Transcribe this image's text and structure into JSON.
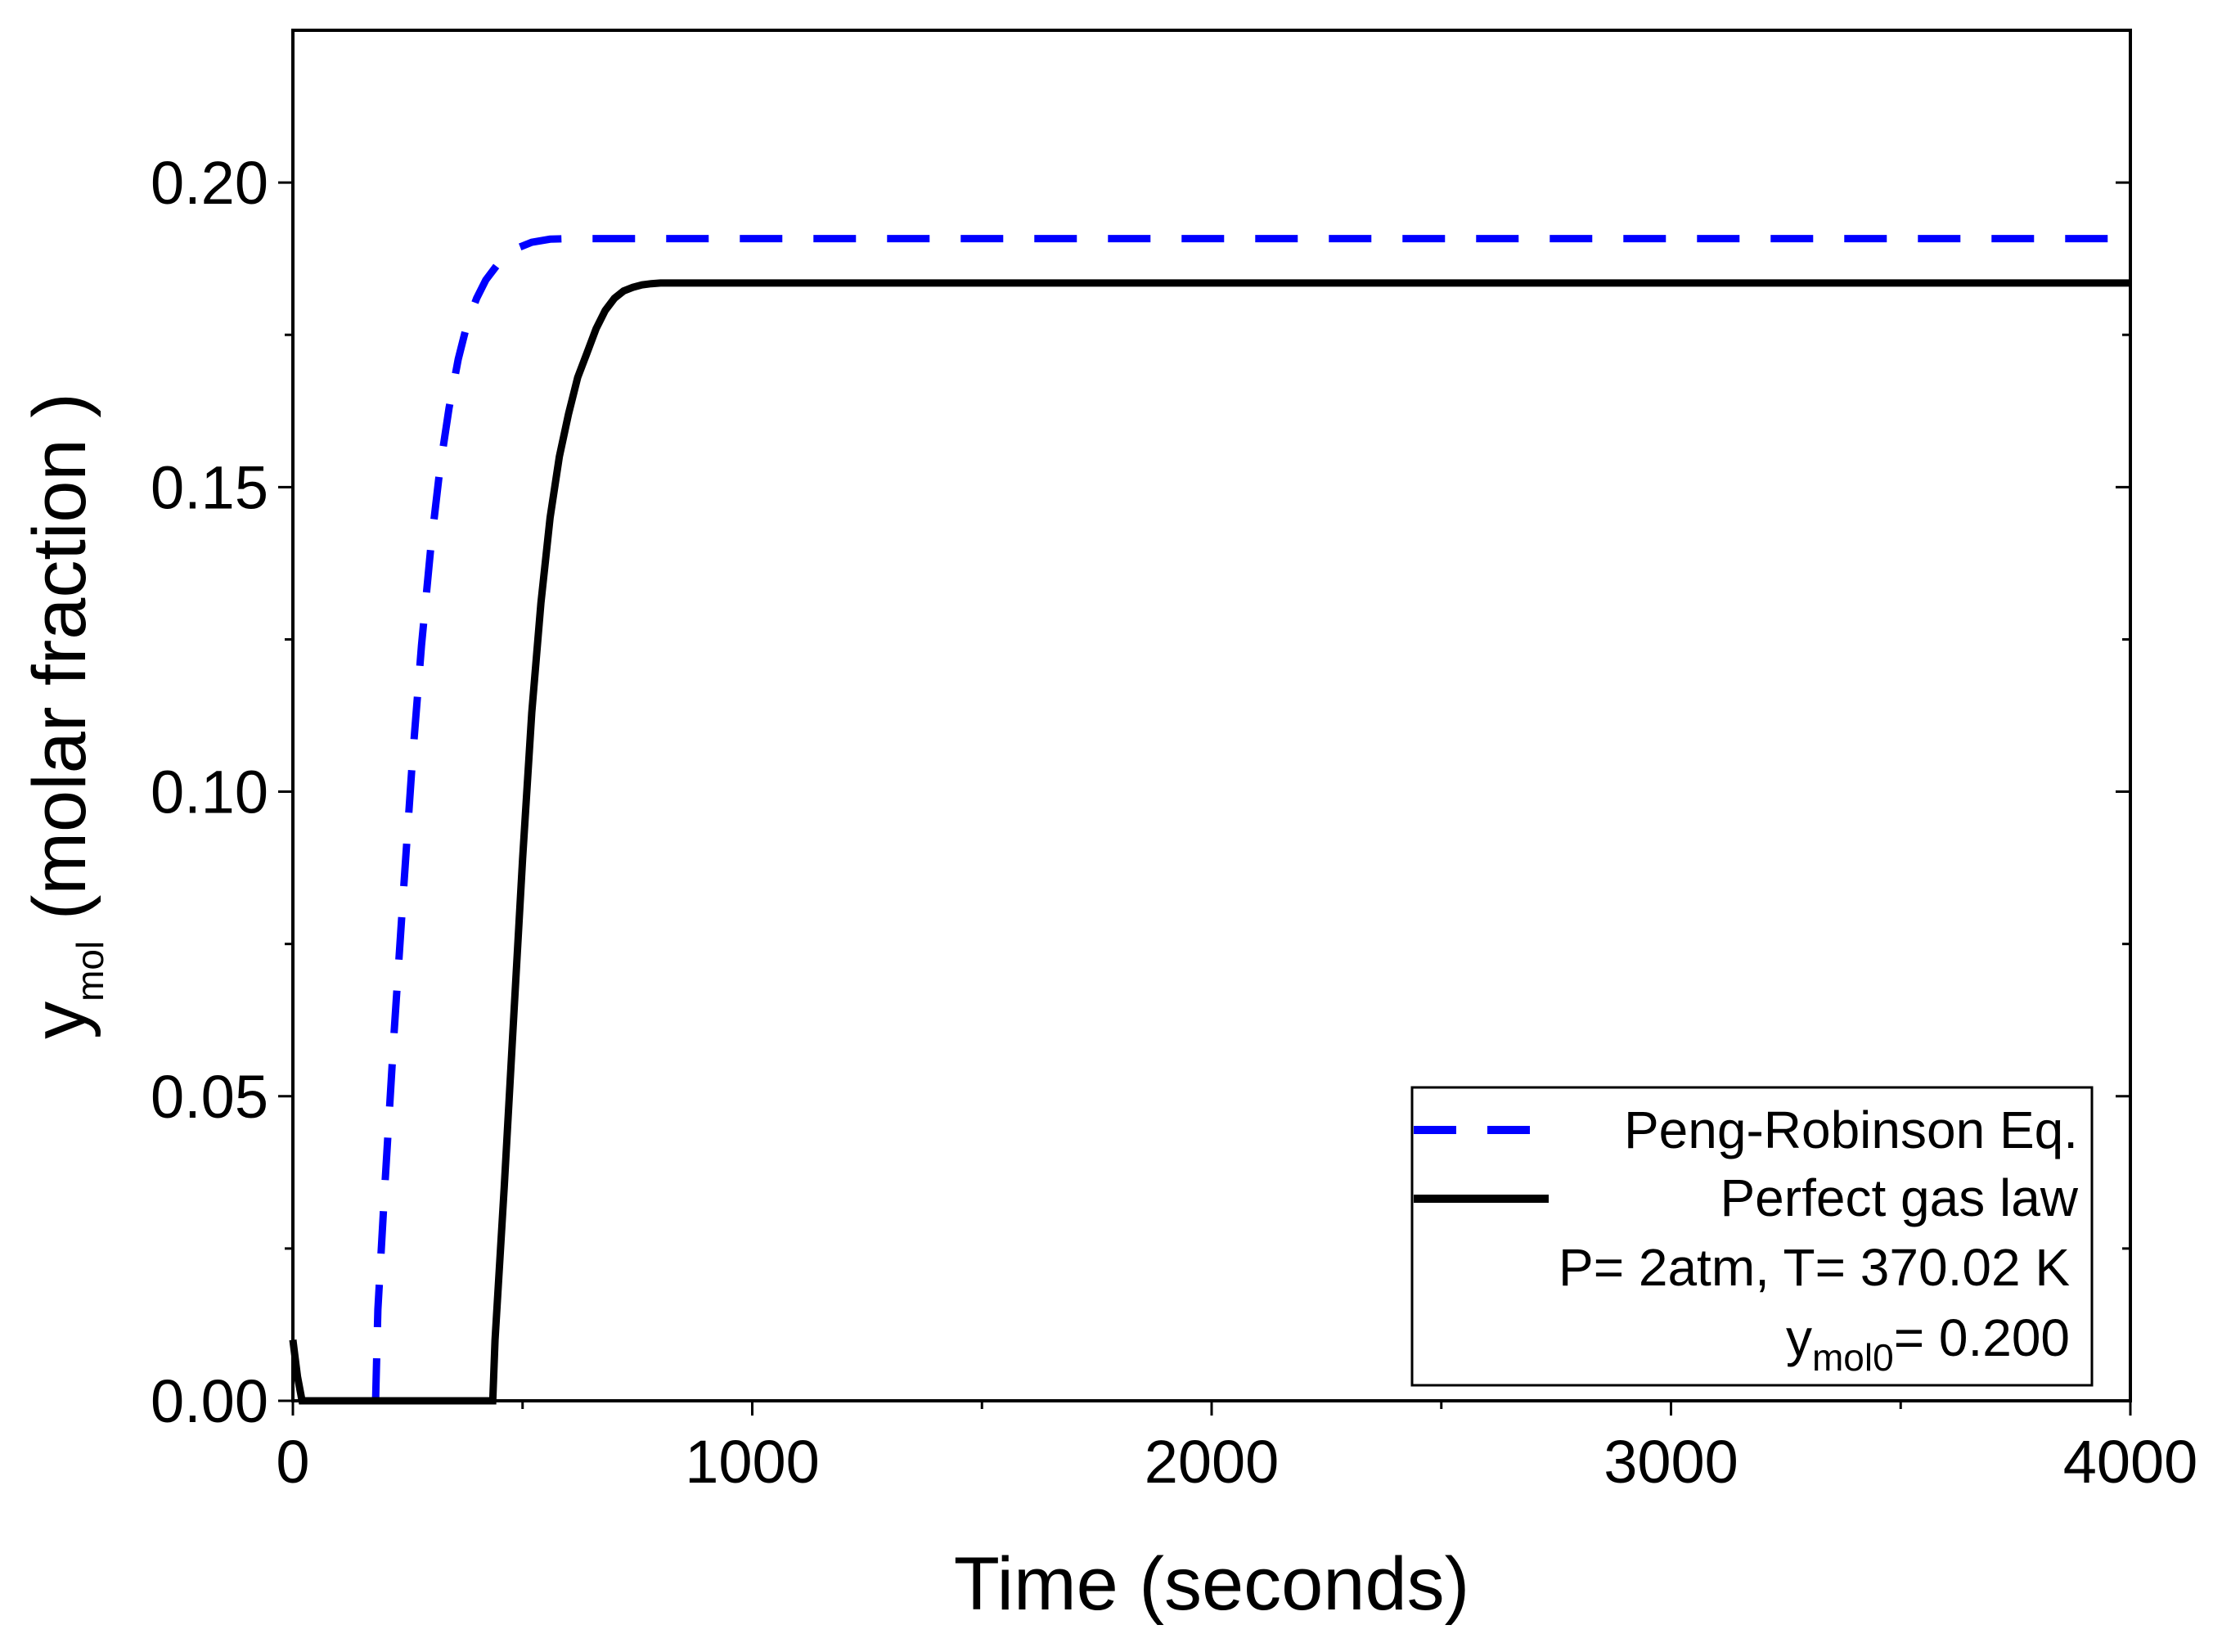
{
  "chart_data": {
    "type": "line",
    "xlabel": "Time (seconds)",
    "ylabel": {
      "main": "y",
      "sub": "mol",
      "rest": " (molar fraction )"
    },
    "xlim": [
      0,
      4000
    ],
    "ylim": [
      0,
      0.225
    ],
    "x_ticks": [
      0,
      1000,
      2000,
      3000,
      4000
    ],
    "x_tick_labels": [
      "0",
      "1000",
      "2000",
      "3000",
      "4000"
    ],
    "x_minor_ticks": [
      500,
      1500,
      2500,
      3500
    ],
    "y_ticks": [
      0,
      0.05,
      0.1,
      0.15,
      0.2
    ],
    "y_tick_labels": [
      "0.00",
      "0.05",
      "0.10",
      "0.15",
      "0.20"
    ],
    "y_minor_ticks": [
      0.025,
      0.075,
      0.125,
      0.175
    ],
    "grid": false,
    "series": [
      {
        "name": "Peng-Robinson Eq.",
        "color": "#0000ff",
        "style": "dashed",
        "x": [
          180,
          185,
          200,
          220,
          240,
          260,
          280,
          300,
          320,
          340,
          360,
          380,
          400,
          420,
          450,
          480,
          520,
          560,
          600,
          800,
          1000,
          2000,
          3000,
          4000
        ],
        "y": [
          0.0,
          0.015,
          0.035,
          0.06,
          0.083,
          0.105,
          0.124,
          0.14,
          0.153,
          0.163,
          0.171,
          0.177,
          0.181,
          0.184,
          0.187,
          0.189,
          0.1902,
          0.1907,
          0.1908,
          0.1908,
          0.1908,
          0.1908,
          0.1908,
          0.1908
        ]
      },
      {
        "name": "Perfect gas law",
        "color": "#000000",
        "style": "solid",
        "x": [
          0,
          10,
          20,
          100,
          200,
          300,
          400,
          435,
          440,
          460,
          480,
          500,
          520,
          540,
          560,
          580,
          600,
          620,
          640,
          660,
          680,
          700,
          720,
          740,
          760,
          780,
          800,
          1000,
          2000,
          3000,
          4000
        ],
        "y": [
          0.01,
          0.004,
          0.0,
          0.0,
          0.0,
          0.0,
          0.0,
          0.0,
          0.01,
          0.035,
          0.062,
          0.089,
          0.113,
          0.131,
          0.145,
          0.155,
          0.162,
          0.168,
          0.172,
          0.176,
          0.179,
          0.181,
          0.1822,
          0.1828,
          0.1832,
          0.1834,
          0.1835,
          0.1835,
          0.1835,
          0.1835,
          0.1835
        ]
      }
    ],
    "legend": {
      "position": "bottom-right",
      "entries": [
        "Peng-Robinson Eq.",
        "Perfect gas law"
      ],
      "annotation_line1": "P= 2atm, T= 370.02 K",
      "annotation_line2": {
        "main": "y",
        "sub": "mol0",
        "rest": "= 0.200"
      }
    }
  }
}
